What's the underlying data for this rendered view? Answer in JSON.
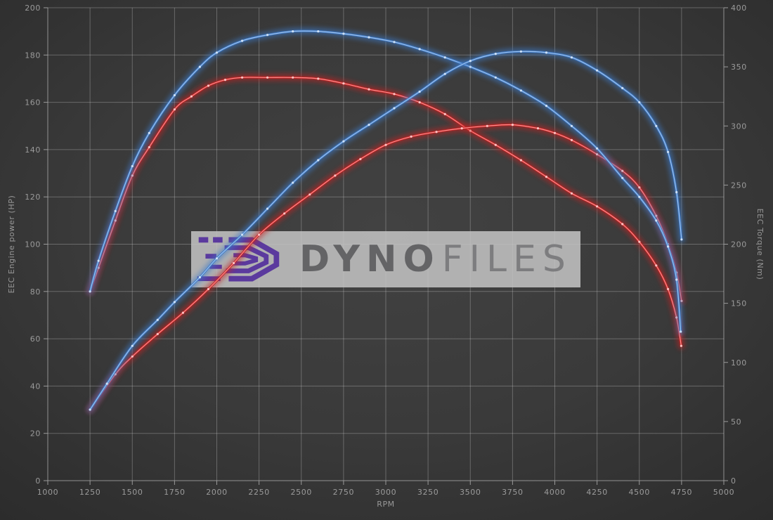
{
  "watermark": {
    "brand_primary": "Dyno",
    "brand_secondary": "Files",
    "logo_color": "#5b3a9e"
  },
  "colors": {
    "background": "#3a3a3a",
    "gridline": "#d8d8d8",
    "axis_text": "#9b9b9b",
    "curve_blue": "#3d7ac8",
    "curve_blue_inner": "#a9c9ee",
    "curve_red": "#c42424",
    "curve_red_inner": "#ffa0a0"
  },
  "chart_data": {
    "type": "line",
    "title": "",
    "grid": true,
    "legend": "none",
    "x_axis": {
      "label": "RPM",
      "min": 1000,
      "max": 5000,
      "tick_step": 250,
      "ticks": [
        "1000",
        "1250",
        "1500",
        "1750",
        "2000",
        "2250",
        "2500",
        "2750",
        "3000",
        "3250",
        "3500",
        "3750",
        "4000",
        "4250",
        "4500",
        "4750",
        "5000"
      ]
    },
    "y_axis_left": {
      "label": "EEC Engine power (HP)",
      "min": 0,
      "max": 200,
      "tick_step": 20,
      "ticks": [
        "0",
        "20",
        "40",
        "60",
        "80",
        "100",
        "120",
        "140",
        "160",
        "180",
        "200"
      ]
    },
    "y_axis_right": {
      "label": "EEC Torque (Nm)",
      "min": 0,
      "max": 400,
      "tick_step": 50,
      "ticks": [
        "0",
        "50",
        "100",
        "150",
        "200",
        "250",
        "300",
        "350",
        "400"
      ]
    },
    "series": [
      {
        "id": "torque_red",
        "label": "red torque curve",
        "axis": "right",
        "unit": "Nm",
        "color": "#c42424",
        "inner_color": "#ff9a9a",
        "dot_color": "#ffc6c6",
        "points": [
          [
            1250,
            160
          ],
          [
            1300,
            180
          ],
          [
            1400,
            220
          ],
          [
            1500,
            258
          ],
          [
            1600,
            282
          ],
          [
            1750,
            314
          ],
          [
            1850,
            325
          ],
          [
            1950,
            334
          ],
          [
            2050,
            339
          ],
          [
            2150,
            341
          ],
          [
            2300,
            341
          ],
          [
            2450,
            341
          ],
          [
            2600,
            340
          ],
          [
            2750,
            336
          ],
          [
            2900,
            331
          ],
          [
            3050,
            327
          ],
          [
            3200,
            320
          ],
          [
            3350,
            310
          ],
          [
            3500,
            296
          ],
          [
            3650,
            284
          ],
          [
            3800,
            271
          ],
          [
            3950,
            257
          ],
          [
            4100,
            243
          ],
          [
            4250,
            232
          ],
          [
            4400,
            217
          ],
          [
            4500,
            202
          ],
          [
            4600,
            182
          ],
          [
            4670,
            162
          ],
          [
            4720,
            138
          ],
          [
            4748,
            114
          ]
        ]
      },
      {
        "id": "power_red",
        "label": "red power curve",
        "axis": "left",
        "unit": "HP",
        "color": "#c42424",
        "inner_color": "#ff9a9a",
        "dot_color": "#ffc6c6",
        "points": [
          [
            1250,
            30
          ],
          [
            1400,
            45
          ],
          [
            1500,
            52.5
          ],
          [
            1650,
            62
          ],
          [
            1800,
            71
          ],
          [
            1950,
            81
          ],
          [
            2100,
            92
          ],
          [
            2250,
            104
          ],
          [
            2400,
            113
          ],
          [
            2550,
            121
          ],
          [
            2700,
            129
          ],
          [
            2850,
            136
          ],
          [
            3000,
            142
          ],
          [
            3150,
            145.5
          ],
          [
            3300,
            147.5
          ],
          [
            3450,
            149
          ],
          [
            3600,
            150
          ],
          [
            3750,
            150.5
          ],
          [
            3900,
            149
          ],
          [
            4000,
            147
          ],
          [
            4100,
            144
          ],
          [
            4250,
            138
          ],
          [
            4400,
            131
          ],
          [
            4500,
            124
          ],
          [
            4600,
            112
          ],
          [
            4670,
            100
          ],
          [
            4720,
            88
          ],
          [
            4750,
            76
          ]
        ]
      },
      {
        "id": "torque_blue",
        "label": "blue torque curve",
        "axis": "right",
        "unit": "Nm",
        "color": "#3d7ac8",
        "inner_color": "#a9c9ee",
        "dot_color": "#d2e4f8",
        "points": [
          [
            1250,
            160
          ],
          [
            1300,
            186
          ],
          [
            1400,
            228
          ],
          [
            1500,
            266
          ],
          [
            1600,
            294
          ],
          [
            1750,
            326
          ],
          [
            1900,
            350
          ],
          [
            2000,
            362
          ],
          [
            2150,
            372
          ],
          [
            2300,
            377
          ],
          [
            2450,
            380
          ],
          [
            2600,
            380
          ],
          [
            2750,
            378
          ],
          [
            2900,
            375
          ],
          [
            3050,
            371
          ],
          [
            3200,
            365
          ],
          [
            3350,
            358
          ],
          [
            3500,
            350
          ],
          [
            3650,
            341
          ],
          [
            3800,
            330
          ],
          [
            3950,
            317
          ],
          [
            4100,
            300
          ],
          [
            4250,
            281
          ],
          [
            4400,
            256
          ],
          [
            4500,
            240
          ],
          [
            4600,
            220
          ],
          [
            4670,
            198
          ],
          [
            4720,
            170
          ],
          [
            4745,
            126
          ]
        ]
      },
      {
        "id": "power_blue",
        "label": "blue power curve",
        "axis": "left",
        "unit": "HP",
        "color": "#3d7ac8",
        "inner_color": "#a9c9ee",
        "dot_color": "#d2e4f8",
        "points": [
          [
            1250,
            30
          ],
          [
            1350,
            41
          ],
          [
            1500,
            57
          ],
          [
            1650,
            68
          ],
          [
            1750,
            75.5
          ],
          [
            1900,
            86
          ],
          [
            2000,
            94
          ],
          [
            2150,
            104
          ],
          [
            2300,
            115
          ],
          [
            2450,
            126
          ],
          [
            2600,
            135.5
          ],
          [
            2750,
            143.5
          ],
          [
            2900,
            150.5
          ],
          [
            3050,
            157.5
          ],
          [
            3200,
            164.5
          ],
          [
            3350,
            172
          ],
          [
            3500,
            177.5
          ],
          [
            3650,
            180.5
          ],
          [
            3800,
            181.5
          ],
          [
            3950,
            181
          ],
          [
            4100,
            179
          ],
          [
            4250,
            173.5
          ],
          [
            4400,
            166
          ],
          [
            4500,
            160
          ],
          [
            4600,
            150
          ],
          [
            4670,
            139
          ],
          [
            4720,
            122
          ],
          [
            4750,
            102
          ]
        ]
      }
    ]
  }
}
